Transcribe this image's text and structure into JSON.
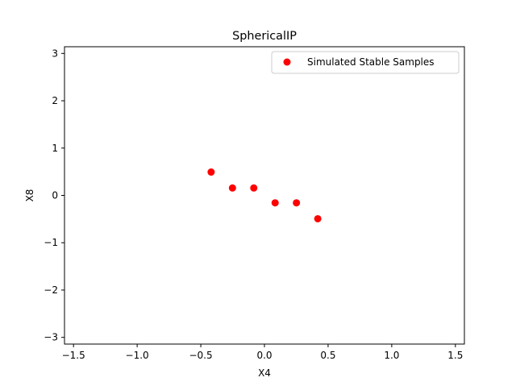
{
  "chart_data": {
    "type": "scatter",
    "title": "SphericalIP",
    "xlabel": "X4",
    "ylabel": "X8",
    "xlim": [
      -1.5708,
      1.5708
    ],
    "ylim": [
      -3.1416,
      3.1416
    ],
    "x_ticks": [
      -1.5,
      -1.0,
      -0.5,
      0.0,
      0.5,
      1.0,
      1.5
    ],
    "x_tick_labels": [
      "−1.5",
      "−1.0",
      "−0.5",
      "0.0",
      "0.5",
      "1.0",
      "1.5"
    ],
    "y_ticks": [
      -3,
      -2,
      -1,
      0,
      1,
      2,
      3
    ],
    "y_tick_labels": [
      "−3",
      "−2",
      "−1",
      "0",
      "1",
      "2",
      "3"
    ],
    "grid": false,
    "legend_position": "upper right",
    "series": [
      {
        "name": "Simulated Stable Samples",
        "color": "#ff0000",
        "marker": "circle",
        "x": [
          -0.4189,
          -0.2513,
          -0.0838,
          0.0838,
          0.2513,
          0.4189
        ],
        "y": [
          0.4937,
          0.1571,
          0.1571,
          -0.1571,
          -0.1571,
          -0.4937
        ]
      }
    ]
  }
}
